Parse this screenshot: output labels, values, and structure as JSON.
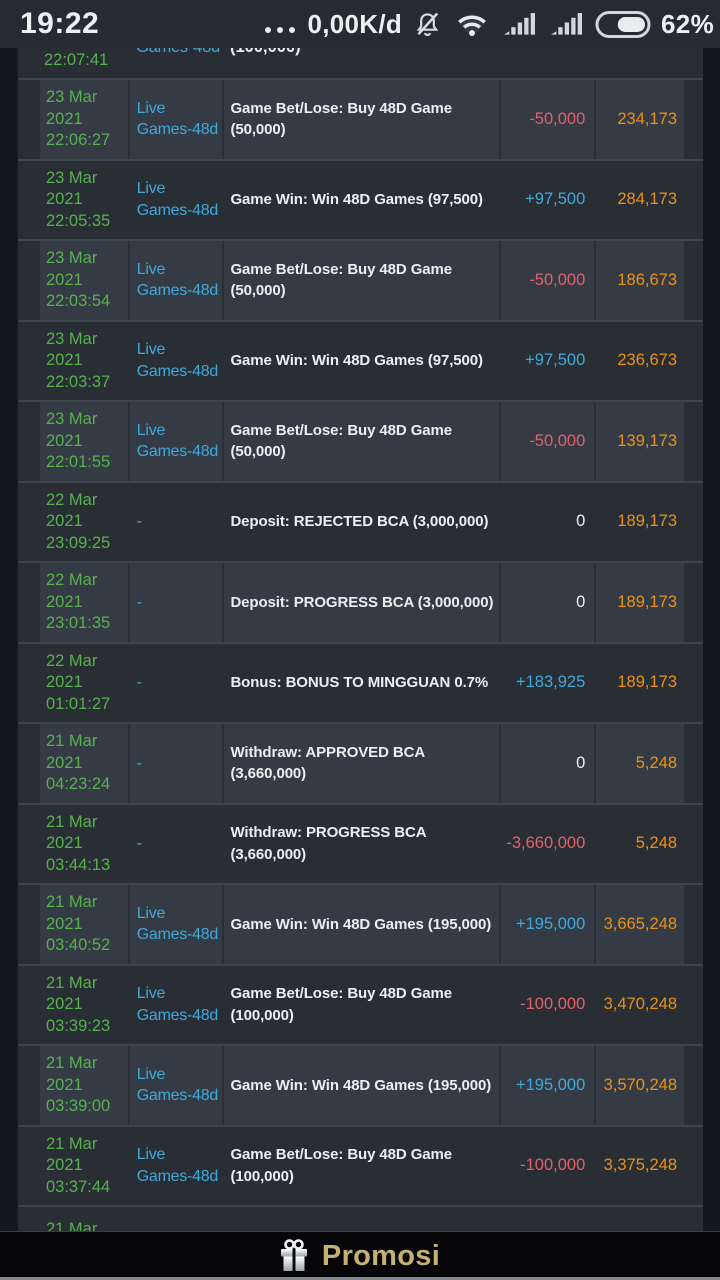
{
  "status_bar": {
    "time": "19:22",
    "data_usage": "0,00K/d",
    "battery_percent": "62%",
    "battery_level": 62,
    "icons": [
      "more-dots-icon",
      "notifications-muted-icon",
      "wifi-icon",
      "signal-icon",
      "signal-icon",
      "battery-icon"
    ]
  },
  "colors": {
    "green": "#57b14f",
    "cyan": "#3fa9dc",
    "red": "#e2606a",
    "orange": "#eb9114",
    "gold": "#c6b175"
  },
  "table": {
    "partial_top_row": {
      "time_fragment": "22:07:41",
      "category_fragment": "Games-48d",
      "description_fragment": "(100,000)"
    },
    "rows": [
      {
        "date_lines": [
          "23 Mar",
          "2021",
          "22:06:27"
        ],
        "category": "Live Games-48d",
        "description": "Game Bet/Lose: Buy 48D Game (50,000)",
        "amount": "-50,000",
        "balance": "234,173"
      },
      {
        "date_lines": [
          "23 Mar",
          "2021",
          "22:05:35"
        ],
        "category": "Live Games-48d",
        "description": "Game Win: Win 48D Games (97,500)",
        "amount": "+97,500",
        "balance": "284,173"
      },
      {
        "date_lines": [
          "23 Mar",
          "2021",
          "22:03:54"
        ],
        "category": "Live Games-48d",
        "description": "Game Bet/Lose: Buy 48D Game (50,000)",
        "amount": "-50,000",
        "balance": "186,673"
      },
      {
        "date_lines": [
          "23 Mar",
          "2021",
          "22:03:37"
        ],
        "category": "Live Games-48d",
        "description": "Game Win: Win 48D Games (97,500)",
        "amount": "+97,500",
        "balance": "236,673"
      },
      {
        "date_lines": [
          "23 Mar",
          "2021",
          "22:01:55"
        ],
        "category": "Live Games-48d",
        "description": "Game Bet/Lose: Buy 48D Game (50,000)",
        "amount": "-50,000",
        "balance": "139,173"
      },
      {
        "date_lines": [
          "22 Mar",
          "2021",
          "23:09:25"
        ],
        "category": "-",
        "description": "Deposit: REJECTED BCA (3,000,000)",
        "amount": "0",
        "balance": "189,173"
      },
      {
        "date_lines": [
          "22 Mar",
          "2021",
          "23:01:35"
        ],
        "category": "-",
        "description": "Deposit: PROGRESS BCA (3,000,000)",
        "amount": "0",
        "balance": "189,173"
      },
      {
        "date_lines": [
          "22 Mar",
          "2021",
          "01:01:27"
        ],
        "category": "-",
        "description": "Bonus: BONUS TO MINGGUAN 0.7%",
        "amount": "+183,925",
        "balance": "189,173"
      },
      {
        "date_lines": [
          "21 Mar",
          "2021",
          "04:23:24"
        ],
        "category": "-",
        "description": "Withdraw: APPROVED BCA (3,660,000)",
        "amount": "0",
        "balance": "5,248"
      },
      {
        "date_lines": [
          "21 Mar",
          "2021",
          "03:44:13"
        ],
        "category": "-",
        "description": "Withdraw: PROGRESS BCA (3,660,000)",
        "amount": "-3,660,000",
        "balance": "5,248"
      },
      {
        "date_lines": [
          "21 Mar",
          "2021",
          "03:40:52"
        ],
        "category": "Live Games-48d",
        "description": "Game Win: Win 48D Games (195,000)",
        "amount": "+195,000",
        "balance": "3,665,248"
      },
      {
        "date_lines": [
          "21 Mar",
          "2021",
          "03:39:23"
        ],
        "category": "Live Games-48d",
        "description": "Game Bet/Lose: Buy 48D Game (100,000)",
        "amount": "-100,000",
        "balance": "3,470,248"
      },
      {
        "date_lines": [
          "21 Mar",
          "2021",
          "03:39:00"
        ],
        "category": "Live Games-48d",
        "description": "Game Win: Win 48D Games (195,000)",
        "amount": "+195,000",
        "balance": "3,570,248"
      },
      {
        "date_lines": [
          "21 Mar",
          "2021",
          "03:37:44"
        ],
        "category": "Live Games-48d",
        "description": "Game Bet/Lose: Buy 48D Game (100,000)",
        "amount": "-100,000",
        "balance": "3,375,248"
      }
    ],
    "partial_bottom_row": {
      "date_fragment": "21 Mar"
    }
  },
  "promo_bar": {
    "label": "Promosi",
    "icon": "gift-icon"
  }
}
